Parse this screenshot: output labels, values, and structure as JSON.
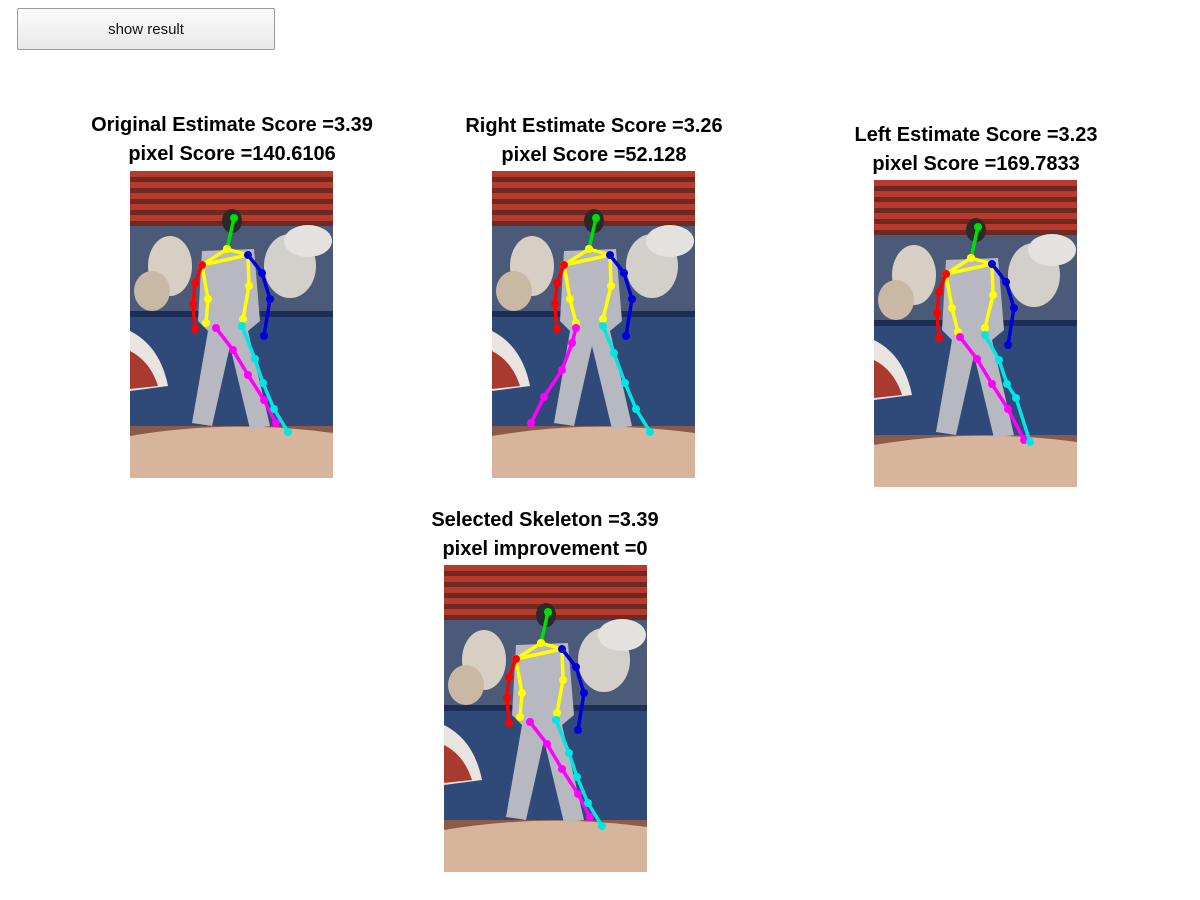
{
  "toolbar": {
    "show_result_label": "show result"
  },
  "panels": {
    "original": {
      "line1": "Original Estimate Score =3.39",
      "line2": "pixel Score =140.6106"
    },
    "right": {
      "line1": "Right Estimate Score =3.26",
      "line2": "pixel Score =52.128"
    },
    "left": {
      "line1": "Left Estimate Score =3.23",
      "line2": "pixel Score =169.7833"
    },
    "selected": {
      "line1": "Selected Skeleton =3.39",
      "line2": "pixel improvement =0"
    }
  },
  "colors": {
    "head": "#00e000",
    "torso": "#ffff00",
    "right_arm": "#ff0000",
    "left_arm": "#0000dd",
    "right_leg": "#ff00ff",
    "left_leg": "#00e5e5"
  }
}
